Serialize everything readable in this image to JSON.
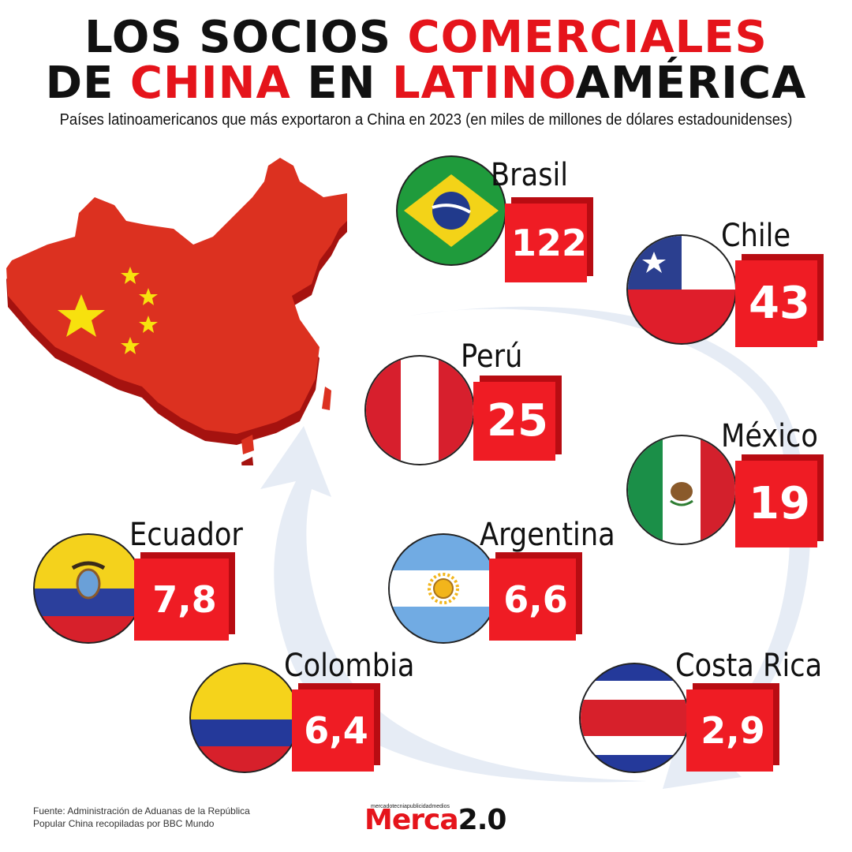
{
  "title": {
    "line1_black": "LOS SOCIOS ",
    "line1_red": "COMERCIALES",
    "line2_black1": "DE ",
    "line2_red1": "CHINA",
    "line2_black2": " EN ",
    "line2_red2": "LATINO",
    "line2_black3": "AMÉRICA"
  },
  "subtitle": "Países latinoamericanos que más exportaron a China en 2023 (en miles de millones de dólares estadounidenses)",
  "colors": {
    "accent_red": "#e5141b",
    "value_box": "#ef1c24",
    "value_box_shadow": "#b80c12",
    "arrow": "#e6ecf5"
  },
  "chart_data": {
    "type": "table",
    "categories": [
      "Brasil",
      "Chile",
      "Perú",
      "México",
      "Ecuador",
      "Argentina",
      "Colombia",
      "Costa Rica"
    ],
    "values": [
      122,
      43,
      25,
      19,
      7.8,
      6.6,
      6.4,
      2.9
    ],
    "value_labels": [
      "122",
      "43",
      "25",
      "19",
      "7,8",
      "6,6",
      "6,4",
      "2,9"
    ]
  },
  "source": {
    "line1": "Fuente: Administración de Aduanas de la República",
    "line2": "Popular China recopiladas por BBC Mundo"
  },
  "logo": {
    "tagline": "mercadotecniapublicidadmedios",
    "brand_red": "Merca",
    "brand_black": "2.0"
  }
}
